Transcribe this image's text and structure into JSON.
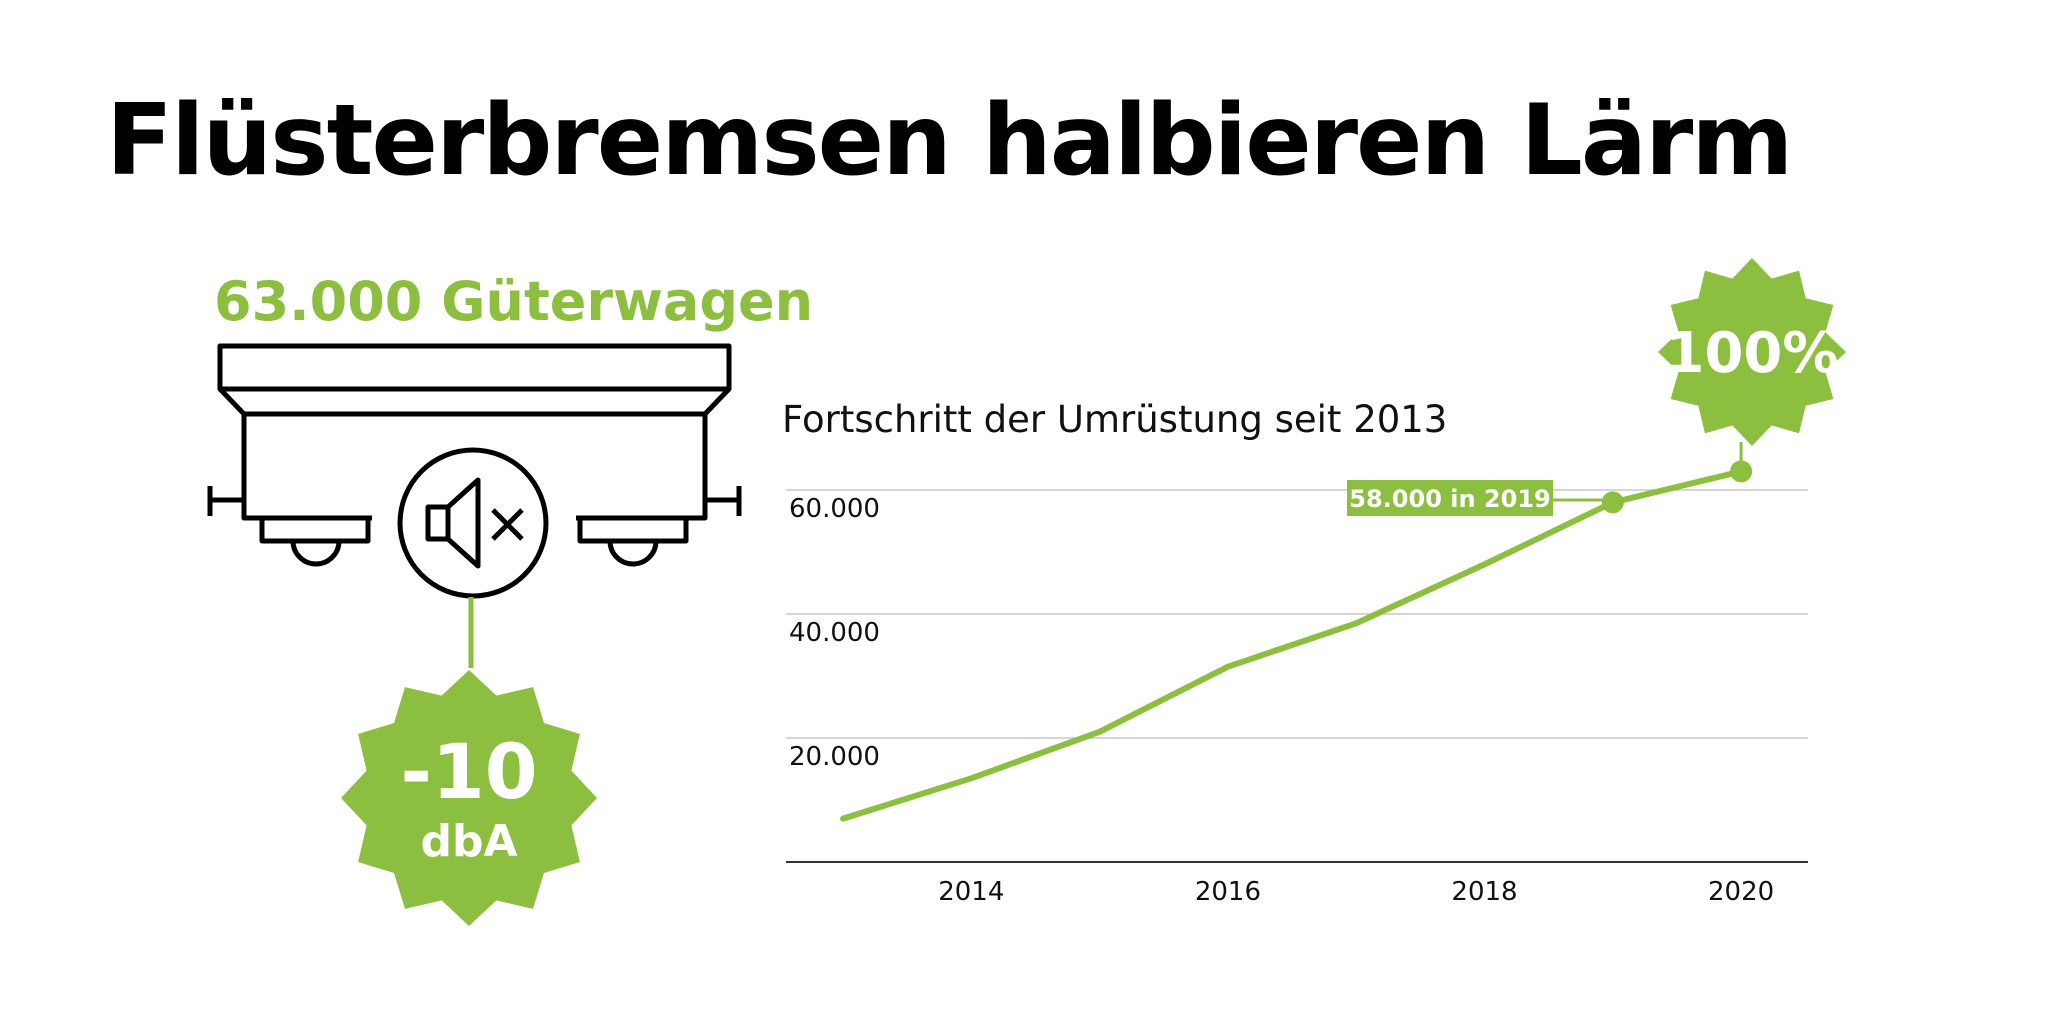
{
  "headline": "Flüsterbremsen halbieren Lärm",
  "wagon_count": "63.000 Güterwagen",
  "noise_badge": {
    "value": "-10",
    "unit": "dbA"
  },
  "icons": [
    "freight-wagon-icon",
    "speaker-mute-icon"
  ],
  "colors": {
    "accent": "#8cbf3f",
    "text": "#000000",
    "grid": "#c8c8c8"
  },
  "chart_data": {
    "type": "line",
    "title": "Fortschritt der Umrüstung seit 2013",
    "xlabel": "",
    "ylabel": "",
    "xlim": [
      2013,
      2020.6
    ],
    "ylim": [
      0,
      60000
    ],
    "x_ticks": [
      {
        "value": 2014,
        "label": "2014"
      },
      {
        "value": 2016,
        "label": "2016"
      },
      {
        "value": 2018,
        "label": "2018"
      },
      {
        "value": 2020,
        "label": "2020"
      }
    ],
    "y_ticks": [
      {
        "value": 20000,
        "label": "20.000"
      },
      {
        "value": 40000,
        "label": "40.000"
      },
      {
        "value": 60000,
        "label": "60.000"
      }
    ],
    "grid": true,
    "series": [
      {
        "x": [
          2013,
          2014,
          2015,
          2016,
          2017,
          2018,
          2019,
          2020
        ],
        "values": [
          7000,
          13500,
          21000,
          31500,
          38500,
          48000,
          58000,
          63000
        ]
      }
    ],
    "annotations": [
      {
        "x": 2019,
        "y": 58000,
        "text": "58.000 in 2019"
      },
      {
        "x": 2020,
        "y": 63000,
        "text": "100%"
      }
    ]
  }
}
